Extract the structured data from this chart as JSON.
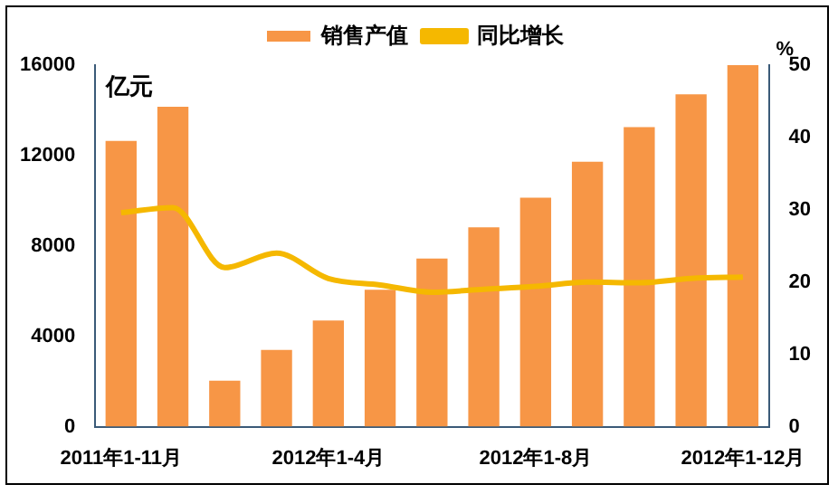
{
  "chart_data": {
    "type": "bar",
    "categories": [
      "2011年1-11月",
      null,
      null,
      null,
      "2012年1-4月",
      null,
      null,
      null,
      "2012年1-8月",
      null,
      null,
      null,
      "2012年1-12月"
    ],
    "ylabel": "亿元",
    "y2label": "%",
    "series": [
      {
        "name": "销售产值",
        "color": "#f79646",
        "values": [
          12650,
          14160,
          2040,
          3400,
          4700,
          6060,
          7440,
          8820,
          10130,
          11730,
          13260,
          14710,
          16000
        ]
      },
      {
        "name": "同比增长",
        "type": "line",
        "axis": "y2",
        "color": "#f5b800",
        "values": [
          29.6,
          30.3,
          22.0,
          24.0,
          20.5,
          19.6,
          18.6,
          19.0,
          19.4,
          20.0,
          19.9,
          20.5,
          20.7
        ]
      }
    ],
    "ylim": [
      0,
      16000
    ],
    "yticks": [
      0,
      4000,
      8000,
      12000,
      16000
    ],
    "y2lim": [
      0,
      50
    ],
    "y2ticks": [
      0,
      10,
      20,
      30,
      40,
      50
    ],
    "legend": "top",
    "grid": false,
    "marker": "none"
  }
}
